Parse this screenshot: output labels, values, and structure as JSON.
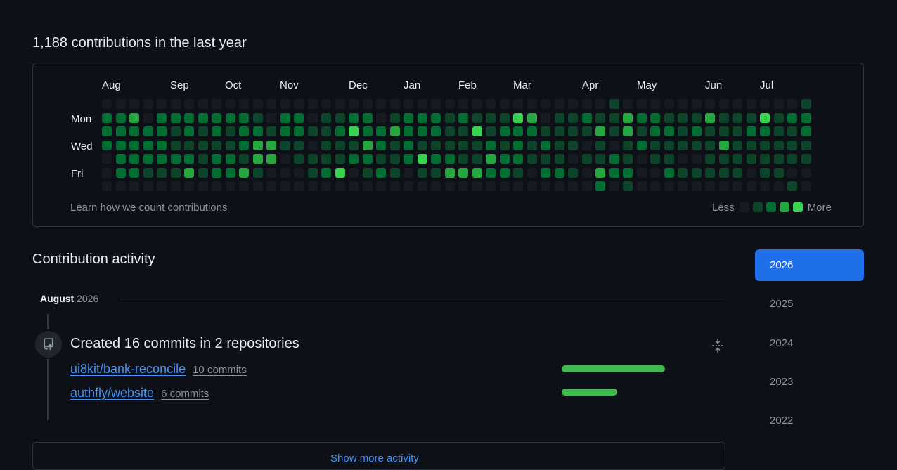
{
  "contributions": {
    "heading": "1,188 contributions in the last year",
    "months": [
      "Aug",
      "Sep",
      "Oct",
      "Nov",
      "Dec",
      "Jan",
      "Feb",
      "Mar",
      "Apr",
      "May",
      "Jun",
      "Jul"
    ],
    "day_labels": [
      "Mon",
      "Wed",
      "Fri"
    ],
    "learn_link": "Learn how we count contributions",
    "legend_less": "Less",
    "legend_more": "More",
    "colors": [
      "#161b22",
      "#0e4429",
      "#006d32",
      "#26a641",
      "#39d353"
    ],
    "levels": [
      [
        0,
        2,
        2,
        2,
        0,
        0,
        0
      ],
      [
        0,
        2,
        2,
        2,
        2,
        2,
        0
      ],
      [
        0,
        3,
        2,
        2,
        2,
        2,
        0
      ],
      [
        0,
        0,
        2,
        2,
        2,
        1,
        0
      ],
      [
        0,
        2,
        2,
        2,
        2,
        1,
        0
      ],
      [
        0,
        2,
        1,
        1,
        2,
        1,
        0
      ],
      [
        0,
        2,
        2,
        1,
        2,
        3,
        0
      ],
      [
        0,
        2,
        1,
        1,
        1,
        1,
        0
      ],
      [
        0,
        2,
        2,
        1,
        2,
        2,
        0
      ],
      [
        0,
        2,
        1,
        1,
        2,
        2,
        0
      ],
      [
        0,
        2,
        2,
        2,
        1,
        3,
        0
      ],
      [
        0,
        1,
        2,
        3,
        3,
        1,
        0
      ],
      [
        0,
        0,
        1,
        3,
        3,
        0,
        0
      ],
      [
        0,
        2,
        2,
        1,
        0,
        0,
        0
      ],
      [
        0,
        2,
        2,
        1,
        1,
        0,
        0
      ],
      [
        0,
        0,
        1,
        0,
        1,
        1,
        0
      ],
      [
        0,
        1,
        1,
        1,
        1,
        2,
        0
      ],
      [
        0,
        1,
        2,
        1,
        1,
        4,
        0
      ],
      [
        0,
        2,
        4,
        1,
        2,
        0,
        0
      ],
      [
        0,
        2,
        2,
        3,
        2,
        1,
        0
      ],
      [
        0,
        0,
        2,
        2,
        1,
        2,
        0
      ],
      [
        0,
        1,
        3,
        1,
        1,
        1,
        0
      ],
      [
        0,
        2,
        2,
        2,
        2,
        0,
        0
      ],
      [
        0,
        2,
        2,
        1,
        4,
        1,
        0
      ],
      [
        0,
        2,
        2,
        1,
        2,
        1,
        0
      ],
      [
        0,
        1,
        1,
        1,
        2,
        3,
        0
      ],
      [
        0,
        2,
        1,
        1,
        1,
        3,
        0
      ],
      [
        0,
        1,
        4,
        1,
        1,
        3,
        0
      ],
      [
        0,
        1,
        1,
        2,
        3,
        2,
        0
      ],
      [
        0,
        1,
        2,
        1,
        2,
        2,
        0
      ],
      [
        0,
        4,
        2,
        2,
        2,
        1,
        0
      ],
      [
        0,
        3,
        2,
        1,
        1,
        0,
        0
      ],
      [
        0,
        0,
        1,
        2,
        1,
        2,
        0
      ],
      [
        0,
        1,
        1,
        1,
        1,
        2,
        0
      ],
      [
        0,
        1,
        1,
        1,
        0,
        1,
        0
      ],
      [
        0,
        2,
        1,
        0,
        1,
        0,
        0
      ],
      [
        0,
        1,
        3,
        1,
        1,
        3,
        2
      ],
      [
        1,
        1,
        1,
        0,
        2,
        2,
        0
      ],
      [
        0,
        3,
        3,
        1,
        1,
        2,
        1
      ],
      [
        0,
        2,
        1,
        2,
        0,
        0,
        0
      ],
      [
        0,
        2,
        2,
        1,
        1,
        0,
        0
      ],
      [
        0,
        1,
        2,
        1,
        1,
        2,
        0
      ],
      [
        0,
        1,
        1,
        1,
        0,
        1,
        0
      ],
      [
        0,
        1,
        2,
        1,
        0,
        1,
        0
      ],
      [
        0,
        3,
        1,
        1,
        1,
        1,
        0
      ],
      [
        0,
        1,
        1,
        3,
        1,
        1,
        0
      ],
      [
        0,
        1,
        1,
        1,
        1,
        1,
        0
      ],
      [
        0,
        1,
        2,
        1,
        1,
        0,
        0
      ],
      [
        0,
        4,
        2,
        1,
        1,
        1,
        0
      ],
      [
        0,
        1,
        1,
        1,
        1,
        1,
        0
      ],
      [
        0,
        2,
        1,
        1,
        1,
        0,
        1
      ],
      [
        1,
        2,
        2,
        1,
        1,
        0,
        0
      ]
    ]
  },
  "activity": {
    "title": "Contribution activity",
    "month": "August",
    "year": "2026",
    "event_title": "Created 16 commits in 2 repositories",
    "repos": [
      {
        "name": "ui8kit/bank-reconcile",
        "commits": "10 commits",
        "count": 10
      },
      {
        "name": "authfly/website",
        "commits": "6 commits",
        "count": 6
      }
    ],
    "show_more": "Show more activity"
  },
  "years": {
    "selected": "2026",
    "list": [
      "2026",
      "2025",
      "2024",
      "2023",
      "2022"
    ]
  },
  "accent": "#1f6feb",
  "link_color": "#4493f8"
}
